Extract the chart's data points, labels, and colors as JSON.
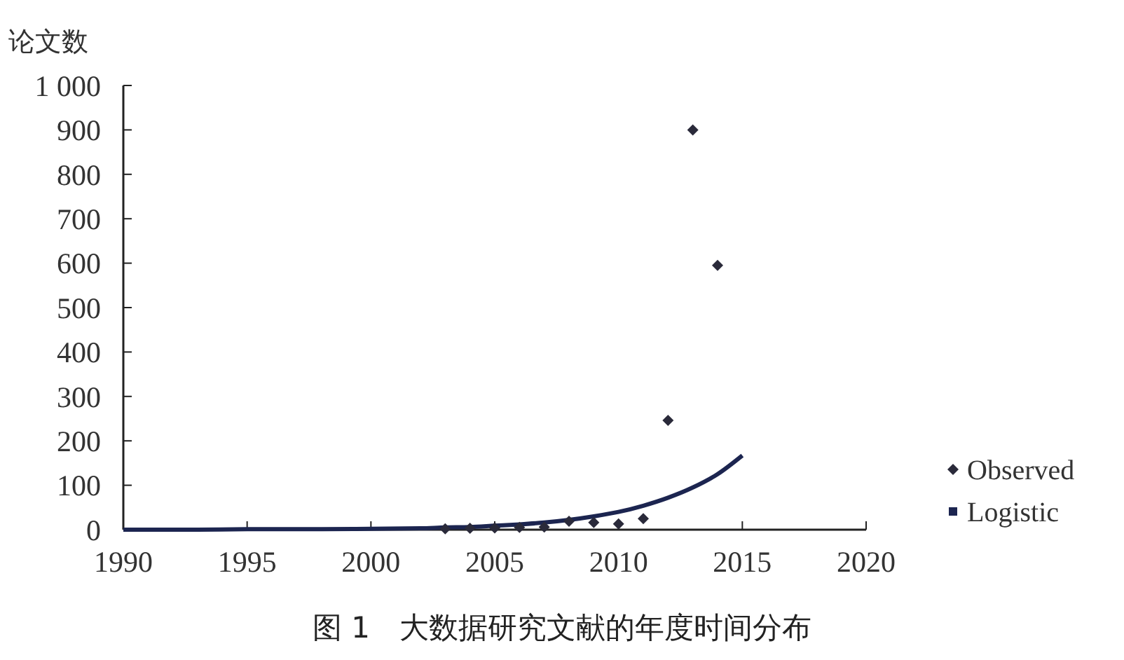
{
  "chart_data": {
    "type": "scatter",
    "title": "图 1　大数据研究文献的年度时间分布",
    "ylabel": "论文数",
    "xlim": [
      1990,
      2020
    ],
    "xticks": [
      1990,
      1995,
      2000,
      2005,
      2010,
      2015,
      2020
    ],
    "ylim": [
      0,
      1000
    ],
    "yticks": [
      0,
      100,
      200,
      300,
      400,
      500,
      600,
      700,
      800,
      900,
      {
        "value": 1000,
        "label": "1 000"
      }
    ],
    "legend": "right",
    "grid": false,
    "marker": "diamond",
    "series": [
      {
        "name": "Observed",
        "color": "#2a2a3a",
        "x": [
          2003,
          2004,
          2005,
          2006,
          2007,
          2008,
          2009,
          2010,
          2011,
          2012,
          2013,
          2014
        ],
        "values": [
          2,
          3,
          4,
          5,
          6,
          19,
          16,
          13,
          25,
          246,
          900,
          595
        ]
      },
      {
        "name": "Logistic",
        "type": "line",
        "marker": "none",
        "color": "#1c2550",
        "x": [
          1990,
          1993,
          1995,
          1998,
          2000,
          2002,
          2003,
          2004,
          2005,
          2006,
          2007,
          2008,
          2009,
          2010,
          2011,
          2012,
          2013,
          2014,
          2015
        ],
        "values": [
          0,
          0,
          1,
          1,
          2,
          3,
          5,
          6,
          9,
          12,
          16,
          22,
          30,
          40,
          54,
          72,
          95,
          125,
          167
        ]
      }
    ]
  }
}
